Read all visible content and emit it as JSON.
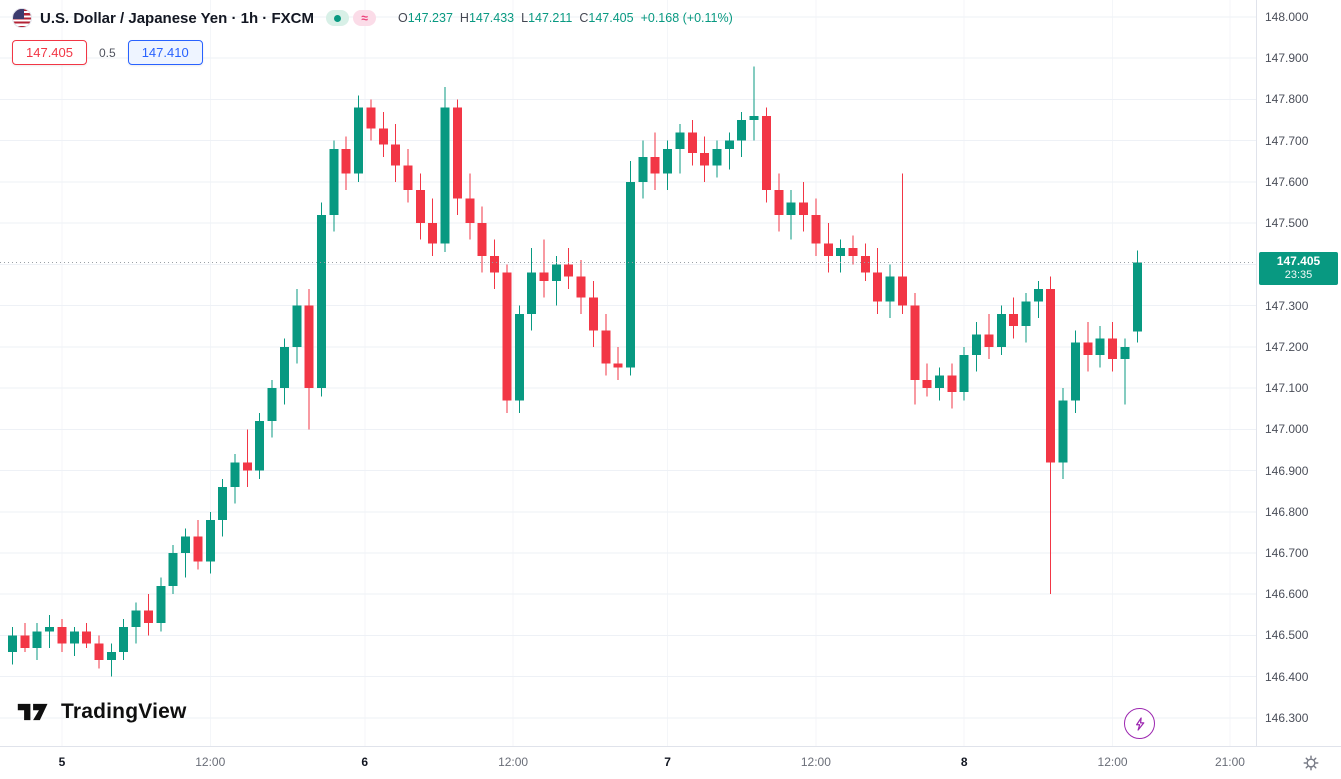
{
  "header": {
    "title": "U.S. Dollar / Japanese Yen · 1h · FXCM",
    "ohlc": {
      "open_label": "O",
      "open": "147.237",
      "high_label": "H",
      "high": "147.433",
      "low_label": "L",
      "low": "147.211",
      "close_label": "C",
      "close": "147.405",
      "change": "+0.168 (+0.11%)"
    },
    "approx_symbol": "≈",
    "sell_price": "147.405",
    "spread": "0.5",
    "buy_price": "147.410"
  },
  "footer": {
    "logo_text": "TradingView"
  },
  "last_price_label": {
    "price": "147.405",
    "countdown": "23:35"
  },
  "price_axis": {
    "ticks": [
      "148.000",
      "147.900",
      "147.800",
      "147.700",
      "147.600",
      "147.500",
      "147.400",
      "147.300",
      "147.200",
      "147.100",
      "147.000",
      "146.900",
      "146.800",
      "146.700",
      "146.600",
      "146.500",
      "146.400",
      "146.300"
    ]
  },
  "time_axis": {
    "labels": [
      {
        "text": "5",
        "index": 4,
        "emphasis": true
      },
      {
        "text": "12:00",
        "index": 16,
        "emphasis": false
      },
      {
        "text": "6",
        "index": 28.5,
        "emphasis": true
      },
      {
        "text": "12:00",
        "index": 40.5,
        "emphasis": false
      },
      {
        "text": "7",
        "index": 53,
        "emphasis": true
      },
      {
        "text": "12:00",
        "index": 65,
        "emphasis": false
      },
      {
        "text": "8",
        "index": 77,
        "emphasis": true
      },
      {
        "text": "12:00",
        "index": 89,
        "emphasis": false
      },
      {
        "text": "21:00",
        "index": 98.5,
        "emphasis": false
      }
    ]
  },
  "chart_data": {
    "type": "candlestick",
    "title": "U.S. Dollar / Japanese Yen · 1h · FXCM",
    "interval": "1h",
    "up_color": "#089981",
    "down_color": "#f23645",
    "ylim": [
      146.232,
      148.041
    ],
    "price_step": 0.1,
    "last_close": 147.405,
    "candles": [
      [
        146.46,
        146.52,
        146.43,
        146.5
      ],
      [
        146.5,
        146.53,
        146.46,
        146.47
      ],
      [
        146.47,
        146.53,
        146.44,
        146.51
      ],
      [
        146.51,
        146.55,
        146.47,
        146.52
      ],
      [
        146.52,
        146.54,
        146.46,
        146.48
      ],
      [
        146.48,
        146.52,
        146.45,
        146.51
      ],
      [
        146.51,
        146.53,
        146.47,
        146.48
      ],
      [
        146.48,
        146.5,
        146.42,
        146.44
      ],
      [
        146.44,
        146.48,
        146.4,
        146.46
      ],
      [
        146.46,
        146.54,
        146.44,
        146.52
      ],
      [
        146.52,
        146.58,
        146.48,
        146.56
      ],
      [
        146.56,
        146.6,
        146.5,
        146.53
      ],
      [
        146.53,
        146.64,
        146.51,
        146.62
      ],
      [
        146.62,
        146.72,
        146.6,
        146.7
      ],
      [
        146.7,
        146.76,
        146.64,
        146.74
      ],
      [
        146.74,
        146.78,
        146.66,
        146.68
      ],
      [
        146.68,
        146.8,
        146.65,
        146.78
      ],
      [
        146.78,
        146.88,
        146.74,
        146.86
      ],
      [
        146.86,
        146.94,
        146.82,
        146.92
      ],
      [
        146.92,
        147.0,
        146.86,
        146.9
      ],
      [
        146.9,
        147.04,
        146.88,
        147.02
      ],
      [
        147.02,
        147.12,
        146.98,
        147.1
      ],
      [
        147.1,
        147.22,
        147.06,
        147.2
      ],
      [
        147.2,
        147.34,
        147.16,
        147.3
      ],
      [
        147.3,
        147.34,
        147.0,
        147.1
      ],
      [
        147.1,
        147.55,
        147.08,
        147.52
      ],
      [
        147.52,
        147.7,
        147.48,
        147.68
      ],
      [
        147.68,
        147.71,
        147.58,
        147.62
      ],
      [
        147.62,
        147.81,
        147.6,
        147.78
      ],
      [
        147.78,
        147.8,
        147.7,
        147.73
      ],
      [
        147.73,
        147.77,
        147.66,
        147.69
      ],
      [
        147.69,
        147.74,
        147.6,
        147.64
      ],
      [
        147.64,
        147.68,
        147.55,
        147.58
      ],
      [
        147.58,
        147.62,
        147.46,
        147.5
      ],
      [
        147.5,
        147.56,
        147.42,
        147.45
      ],
      [
        147.45,
        147.83,
        147.43,
        147.78
      ],
      [
        147.78,
        147.8,
        147.52,
        147.56
      ],
      [
        147.56,
        147.62,
        147.46,
        147.5
      ],
      [
        147.5,
        147.54,
        147.38,
        147.42
      ],
      [
        147.42,
        147.46,
        147.34,
        147.38
      ],
      [
        147.38,
        147.4,
        147.04,
        147.07
      ],
      [
        147.07,
        147.3,
        147.04,
        147.28
      ],
      [
        147.28,
        147.44,
        147.24,
        147.38
      ],
      [
        147.38,
        147.46,
        147.32,
        147.36
      ],
      [
        147.36,
        147.42,
        147.3,
        147.4
      ],
      [
        147.4,
        147.44,
        147.34,
        147.37
      ],
      [
        147.37,
        147.41,
        147.28,
        147.32
      ],
      [
        147.32,
        147.36,
        147.2,
        147.24
      ],
      [
        147.24,
        147.28,
        147.13,
        147.16
      ],
      [
        147.16,
        147.2,
        147.12,
        147.15
      ],
      [
        147.15,
        147.65,
        147.13,
        147.6
      ],
      [
        147.6,
        147.7,
        147.56,
        147.66
      ],
      [
        147.66,
        147.72,
        147.58,
        147.62
      ],
      [
        147.62,
        147.7,
        147.58,
        147.68
      ],
      [
        147.68,
        147.74,
        147.62,
        147.72
      ],
      [
        147.72,
        147.75,
        147.64,
        147.67
      ],
      [
        147.67,
        147.71,
        147.6,
        147.64
      ],
      [
        147.64,
        147.7,
        147.61,
        147.68
      ],
      [
        147.68,
        147.72,
        147.63,
        147.7
      ],
      [
        147.7,
        147.77,
        147.66,
        147.75
      ],
      [
        147.75,
        147.88,
        147.7,
        147.76
      ],
      [
        147.76,
        147.78,
        147.55,
        147.58
      ],
      [
        147.58,
        147.62,
        147.48,
        147.52
      ],
      [
        147.52,
        147.58,
        147.46,
        147.55
      ],
      [
        147.55,
        147.6,
        147.48,
        147.52
      ],
      [
        147.52,
        147.56,
        147.42,
        147.45
      ],
      [
        147.45,
        147.5,
        147.38,
        147.42
      ],
      [
        147.42,
        147.46,
        147.38,
        147.44
      ],
      [
        147.44,
        147.47,
        147.4,
        147.42
      ],
      [
        147.42,
        147.45,
        147.36,
        147.38
      ],
      [
        147.38,
        147.44,
        147.28,
        147.31
      ],
      [
        147.31,
        147.4,
        147.27,
        147.37
      ],
      [
        147.37,
        147.62,
        147.28,
        147.3
      ],
      [
        147.3,
        147.33,
        147.06,
        147.12
      ],
      [
        147.12,
        147.16,
        147.08,
        147.1
      ],
      [
        147.1,
        147.15,
        147.07,
        147.13
      ],
      [
        147.13,
        147.16,
        147.05,
        147.09
      ],
      [
        147.09,
        147.2,
        147.07,
        147.18
      ],
      [
        147.18,
        147.26,
        147.14,
        147.23
      ],
      [
        147.23,
        147.28,
        147.17,
        147.2
      ],
      [
        147.2,
        147.3,
        147.18,
        147.28
      ],
      [
        147.28,
        147.32,
        147.22,
        147.25
      ],
      [
        147.25,
        147.33,
        147.21,
        147.31
      ],
      [
        147.31,
        147.36,
        147.27,
        147.34
      ],
      [
        147.34,
        147.37,
        146.6,
        146.92
      ],
      [
        146.92,
        147.1,
        146.88,
        147.07
      ],
      [
        147.07,
        147.24,
        147.04,
        147.21
      ],
      [
        147.21,
        147.26,
        147.14,
        147.18
      ],
      [
        147.18,
        147.25,
        147.15,
        147.22
      ],
      [
        147.22,
        147.26,
        147.14,
        147.17
      ],
      [
        147.17,
        147.22,
        147.06,
        147.2
      ],
      [
        147.237,
        147.433,
        147.211,
        147.405
      ]
    ]
  }
}
